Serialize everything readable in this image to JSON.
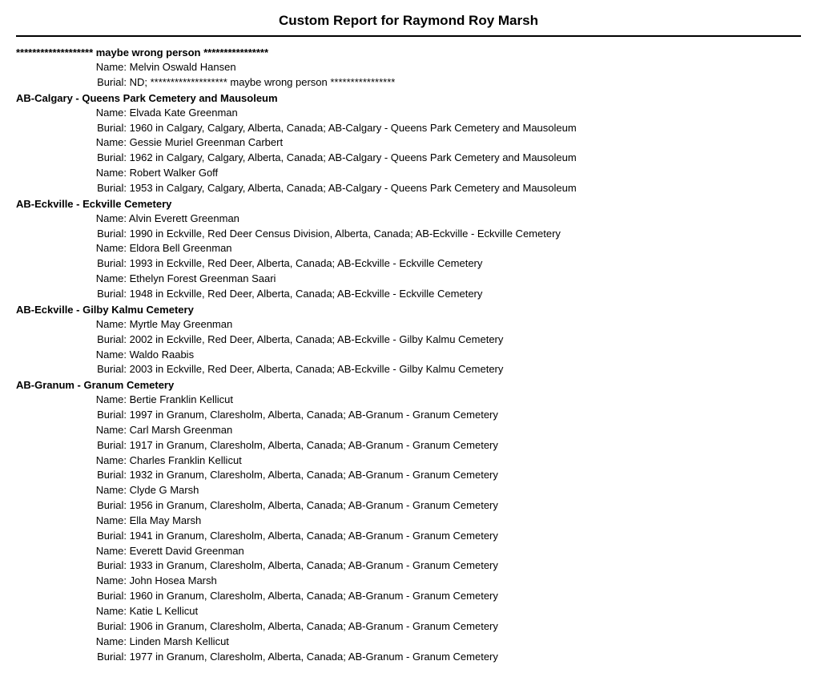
{
  "title": "Custom Report for Raymond Roy Marsh",
  "labels": {
    "name": "Name:",
    "burial": "Burial:"
  },
  "sections": [
    {
      "header": "******************* maybe wrong person ****************",
      "entries": [
        {
          "name": "Melvin Oswald Hansen",
          "burial": "ND; ******************* maybe wrong person ****************"
        }
      ]
    },
    {
      "header": "AB-Calgary - Queens Park Cemetery and Mausoleum",
      "entries": [
        {
          "name": "Elvada Kate Greenman",
          "burial": "1960 in Calgary, Calgary, Alberta, Canada; AB-Calgary - Queens Park Cemetery and Mausoleum"
        },
        {
          "name": "Gessie Muriel Greenman Carbert",
          "burial": "1962 in Calgary, Calgary, Alberta, Canada; AB-Calgary - Queens Park Cemetery and Mausoleum"
        },
        {
          "name": "Robert Walker Goff",
          "burial": "1953 in Calgary, Calgary, Alberta, Canada; AB-Calgary - Queens Park Cemetery and Mausoleum"
        }
      ]
    },
    {
      "header": "AB-Eckville - Eckville Cemetery",
      "entries": [
        {
          "name": "Alvin Everett Greenman",
          "burial": "1990 in Eckville, Red Deer Census Division, Alberta, Canada; AB-Eckville - Eckville Cemetery"
        },
        {
          "name": "Eldora Bell Greenman",
          "burial": "1993 in Eckville, Red Deer, Alberta, Canada; AB-Eckville - Eckville Cemetery"
        },
        {
          "name": "Ethelyn Forest Greenman Saari",
          "burial": "1948 in Eckville, Red Deer, Alberta, Canada; AB-Eckville - Eckville Cemetery"
        }
      ]
    },
    {
      "header": "AB-Eckville - Gilby Kalmu Cemetery",
      "entries": [
        {
          "name": "Myrtle May Greenman",
          "burial": "2002 in Eckville, Red Deer, Alberta, Canada; AB-Eckville - Gilby Kalmu Cemetery"
        },
        {
          "name": "Waldo Raabis",
          "burial": "2003 in Eckville, Red Deer, Alberta, Canada; AB-Eckville - Gilby Kalmu Cemetery"
        }
      ]
    },
    {
      "header": "AB-Granum - Granum Cemetery",
      "entries": [
        {
          "name": "Bertie Franklin Kellicut",
          "burial": "1997 in Granum, Claresholm, Alberta, Canada; AB-Granum - Granum Cemetery"
        },
        {
          "name": "Carl Marsh Greenman",
          "burial": "1917 in Granum, Claresholm, Alberta, Canada; AB-Granum - Granum Cemetery"
        },
        {
          "name": "Charles Franklin Kellicut",
          "burial": "1932 in Granum, Claresholm, Alberta, Canada; AB-Granum - Granum Cemetery"
        },
        {
          "name": "Clyde G Marsh",
          "burial": "1956 in Granum, Claresholm, Alberta, Canada; AB-Granum - Granum Cemetery"
        },
        {
          "name": "Ella May Marsh",
          "burial": "1941 in Granum, Claresholm, Alberta, Canada; AB-Granum - Granum Cemetery"
        },
        {
          "name": "Everett David Greenman",
          "burial": "1933 in Granum, Claresholm, Alberta, Canada; AB-Granum - Granum Cemetery"
        },
        {
          "name": "John Hosea Marsh",
          "burial": "1960 in Granum, Claresholm, Alberta, Canada; AB-Granum - Granum Cemetery"
        },
        {
          "name": "Katie L Kellicut",
          "burial": "1906 in Granum, Claresholm, Alberta, Canada; AB-Granum - Granum Cemetery"
        },
        {
          "name": "Linden Marsh Kellicut",
          "burial": "1977 in Granum, Claresholm, Alberta, Canada; AB-Granum - Granum Cemetery"
        }
      ]
    }
  ]
}
